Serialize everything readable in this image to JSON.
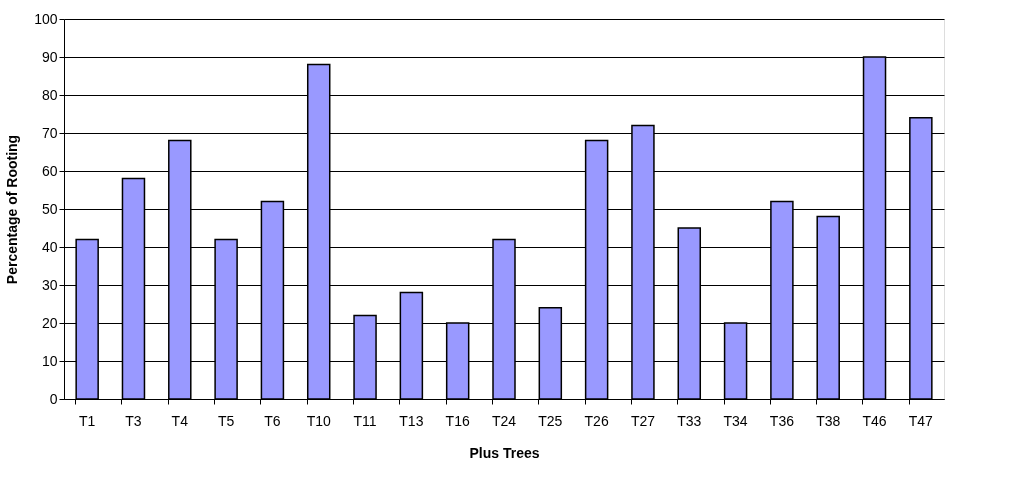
{
  "chart_data": {
    "type": "bar",
    "xlabel": "Plus Trees",
    "ylabel": "Percentage of Rooting",
    "categories": [
      "T1",
      "T3",
      "T4",
      "T5",
      "T6",
      "T10",
      "T11",
      "T13",
      "T16",
      "T24",
      "T25",
      "T26",
      "T27",
      "T33",
      "T34",
      "T36",
      "T38",
      "T46",
      "T47"
    ],
    "values": [
      42,
      58,
      68,
      42,
      52,
      88,
      22,
      28,
      20,
      42,
      24,
      68,
      72,
      45,
      20,
      52,
      48,
      90,
      74
    ],
    "color": "#9999ff",
    "ylim": [
      0,
      100
    ],
    "yticks": [
      0,
      10,
      20,
      30,
      40,
      50,
      60,
      70,
      80,
      90,
      100
    ],
    "grid": "y"
  }
}
